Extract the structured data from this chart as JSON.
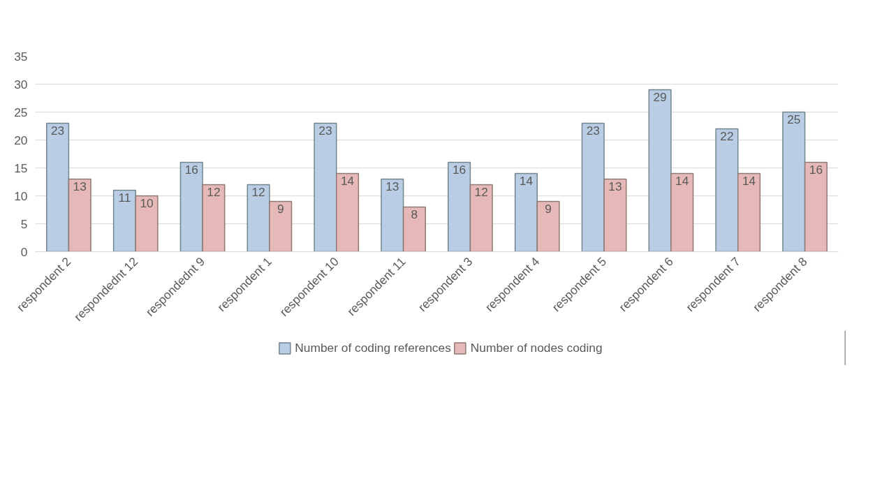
{
  "chart_data": {
    "type": "bar",
    "categories": [
      "respondent 2",
      "respondednt 12",
      "respondednt 9",
      "respondent 1",
      "respondent 10",
      "respondent 11",
      "respondent 3",
      "respondent 4",
      "respondent 5",
      "respondent 6",
      "respondent 7",
      "respondent 8"
    ],
    "series": [
      {
        "name": "Number of coding references",
        "color": "#b9cde5",
        "values": [
          23,
          11,
          16,
          12,
          23,
          13,
          16,
          14,
          23,
          29,
          22,
          25
        ]
      },
      {
        "name": "Number of nodes coding",
        "color": "#e6b9b8",
        "values": [
          13,
          10,
          12,
          9,
          14,
          8,
          12,
          9,
          13,
          14,
          14,
          16
        ]
      }
    ],
    "ylim": [
      0,
      35
    ],
    "yticks": [
      0,
      5,
      10,
      15,
      20,
      25,
      30,
      35
    ],
    "grid": "y",
    "legend": "bottom",
    "data_labels": true
  }
}
